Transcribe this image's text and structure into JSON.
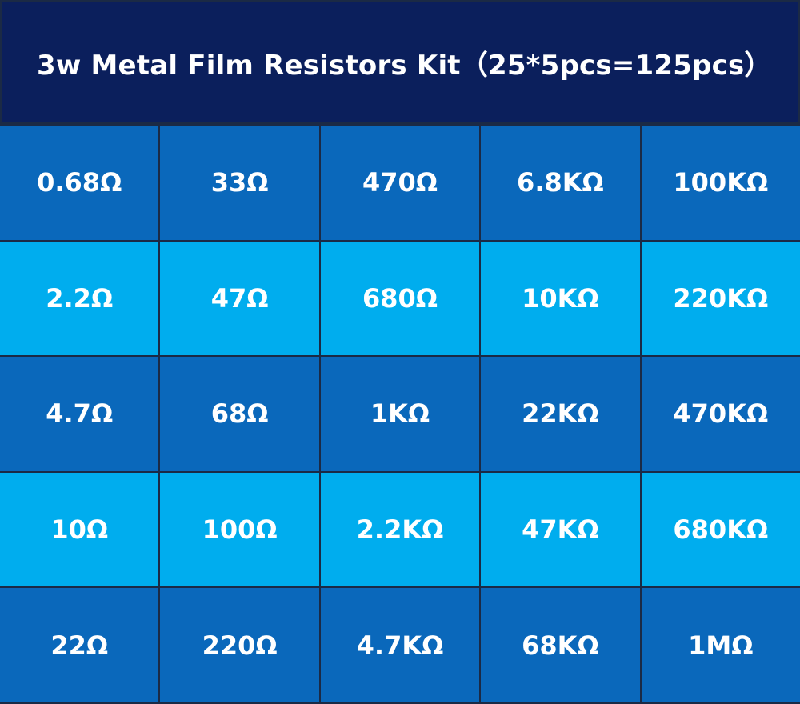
{
  "header": {
    "title": "3w Metal Film Resistors Kit（25*5pcs=125pcs）"
  },
  "table": {
    "rows": [
      [
        "0.68Ω",
        "33Ω",
        "470Ω",
        "6.8KΩ",
        "100KΩ"
      ],
      [
        "2.2Ω",
        "47Ω",
        "680Ω",
        "10KΩ",
        "220KΩ"
      ],
      [
        "4.7Ω",
        "68Ω",
        "1KΩ",
        "22KΩ",
        "470KΩ"
      ],
      [
        "10Ω",
        "100Ω",
        "2.2KΩ",
        "47KΩ",
        "680KΩ"
      ],
      [
        "22Ω",
        "220Ω",
        "4.7KΩ",
        "68KΩ",
        "1MΩ"
      ]
    ]
  }
}
